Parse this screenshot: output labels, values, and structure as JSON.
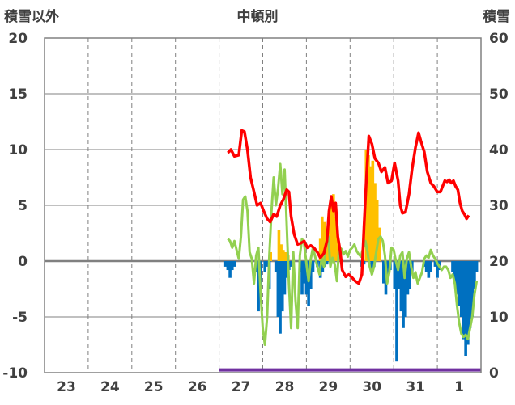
{
  "chart_data": {
    "type": "bar",
    "title": "中頓別",
    "left_axis_label": "積雪以外",
    "right_axis_label": "積雪",
    "x_tick_labels": [
      "23",
      "24",
      "25",
      "26",
      "27",
      "28",
      "29",
      "30",
      "31",
      "1"
    ],
    "y_left": {
      "min": -10,
      "max": 20,
      "ticks": [
        "20",
        "15",
        "10",
        "5",
        "0",
        "-5",
        "-10"
      ]
    },
    "y_right": {
      "min": 0,
      "max": 60,
      "ticks": [
        "60",
        "50",
        "40",
        "30",
        "20",
        "10",
        "0"
      ]
    },
    "x_range_days": [
      0,
      10
    ],
    "grid": "dashed vertical at each day, solid horizontal lines at tick values",
    "colors": {
      "temperature_line": "#ff0000",
      "green_line": "#92d050",
      "snowfall_bars": "#ffc000",
      "precip_bars": "#0070c0",
      "snow_depth_line": "#7030a0",
      "grid": "#808080",
      "text": "#404040"
    },
    "series_temperature": [
      [
        4.2,
        9.7
      ],
      [
        4.27,
        10.0
      ],
      [
        4.35,
        9.4
      ],
      [
        4.45,
        9.5
      ],
      [
        4.52,
        11.7
      ],
      [
        4.58,
        11.6
      ],
      [
        4.65,
        10.0
      ],
      [
        4.72,
        7.5
      ],
      [
        4.8,
        6.2
      ],
      [
        4.87,
        5.0
      ],
      [
        4.95,
        5.2
      ],
      [
        5.02,
        4.5
      ],
      [
        5.1,
        3.8
      ],
      [
        5.17,
        3.5
      ],
      [
        5.25,
        4.2
      ],
      [
        5.32,
        4.0
      ],
      [
        5.4,
        5.0
      ],
      [
        5.47,
        5.5
      ],
      [
        5.55,
        6.4
      ],
      [
        5.6,
        6.2
      ],
      [
        5.65,
        4.0
      ],
      [
        5.72,
        2.4
      ],
      [
        5.8,
        1.5
      ],
      [
        5.87,
        1.6
      ],
      [
        5.95,
        1.8
      ],
      [
        6.02,
        1.2
      ],
      [
        6.1,
        1.4
      ],
      [
        6.17,
        1.2
      ],
      [
        6.25,
        0.8
      ],
      [
        6.32,
        0.3
      ],
      [
        6.4,
        0.7
      ],
      [
        6.47,
        1.8
      ],
      [
        6.52,
        4.5
      ],
      [
        6.57,
        5.8
      ],
      [
        6.62,
        4.5
      ],
      [
        6.67,
        5.2
      ],
      [
        6.72,
        2.2
      ],
      [
        6.77,
        1.0
      ],
      [
        6.82,
        -0.8
      ],
      [
        6.9,
        -1.4
      ],
      [
        6.97,
        -1.2
      ],
      [
        7.05,
        -1.5
      ],
      [
        7.12,
        -1.8
      ],
      [
        7.2,
        -2.0
      ],
      [
        7.27,
        -1.2
      ],
      [
        7.32,
        3.0
      ],
      [
        7.37,
        7.0
      ],
      [
        7.43,
        11.2
      ],
      [
        7.5,
        10.5
      ],
      [
        7.57,
        9.2
      ],
      [
        7.65,
        8.8
      ],
      [
        7.72,
        8.0
      ],
      [
        7.8,
        8.4
      ],
      [
        7.87,
        7.0
      ],
      [
        7.95,
        7.2
      ],
      [
        8.02,
        8.8
      ],
      [
        8.1,
        7.2
      ],
      [
        8.15,
        5.0
      ],
      [
        8.2,
        4.3
      ],
      [
        8.27,
        4.4
      ],
      [
        8.35,
        6.0
      ],
      [
        8.42,
        8.2
      ],
      [
        8.5,
        10.2
      ],
      [
        8.57,
        11.5
      ],
      [
        8.62,
        10.8
      ],
      [
        8.7,
        9.8
      ],
      [
        8.77,
        8.0
      ],
      [
        8.85,
        7.0
      ],
      [
        8.92,
        6.7
      ],
      [
        9.0,
        6.2
      ],
      [
        9.07,
        6.2
      ],
      [
        9.12,
        6.7
      ],
      [
        9.17,
        7.2
      ],
      [
        9.22,
        7.1
      ],
      [
        9.27,
        7.3
      ],
      [
        9.32,
        7.0
      ],
      [
        9.37,
        7.2
      ],
      [
        9.42,
        6.7
      ],
      [
        9.47,
        6.4
      ],
      [
        9.52,
        5.2
      ],
      [
        9.57,
        4.5
      ],
      [
        9.62,
        4.2
      ],
      [
        9.67,
        3.8
      ],
      [
        9.72,
        4.1
      ]
    ],
    "series_green": [
      [
        4.2,
        2.0
      ],
      [
        4.25,
        1.8
      ],
      [
        4.3,
        1.2
      ],
      [
        4.35,
        1.8
      ],
      [
        4.4,
        1.0
      ],
      [
        4.45,
        0.2
      ],
      [
        4.5,
        2.2
      ],
      [
        4.55,
        5.5
      ],
      [
        4.6,
        5.8
      ],
      [
        4.65,
        4.5
      ],
      [
        4.7,
        0.8
      ],
      [
        4.75,
        0.2
      ],
      [
        4.8,
        -2.0
      ],
      [
        4.85,
        0.5
      ],
      [
        4.9,
        1.2
      ],
      [
        4.95,
        -2.8
      ],
      [
        5.0,
        -6.0
      ],
      [
        5.05,
        -7.5
      ],
      [
        5.1,
        -5.0
      ],
      [
        5.15,
        0.5
      ],
      [
        5.2,
        4.5
      ],
      [
        5.25,
        7.5
      ],
      [
        5.3,
        5.0
      ],
      [
        5.35,
        6.5
      ],
      [
        5.4,
        8.7
      ],
      [
        5.45,
        6.0
      ],
      [
        5.5,
        8.2
      ],
      [
        5.55,
        3.2
      ],
      [
        5.6,
        -2.0
      ],
      [
        5.65,
        -6.0
      ],
      [
        5.7,
        0.8
      ],
      [
        5.75,
        -3.5
      ],
      [
        5.8,
        -6.0
      ],
      [
        5.85,
        0.5
      ],
      [
        5.9,
        2.0
      ],
      [
        5.95,
        1.5
      ],
      [
        6.0,
        -0.2
      ],
      [
        6.05,
        -1.8
      ],
      [
        6.1,
        0.2
      ],
      [
        6.15,
        1.2
      ],
      [
        6.2,
        0.4
      ],
      [
        6.25,
        -0.5
      ],
      [
        6.3,
        -1.2
      ],
      [
        6.35,
        0.3
      ],
      [
        6.4,
        -0.5
      ],
      [
        6.45,
        1.6
      ],
      [
        6.5,
        2.2
      ],
      [
        6.55,
        -0.5
      ],
      [
        6.6,
        0.3
      ],
      [
        6.65,
        -0.3
      ],
      [
        6.7,
        -1.8
      ],
      [
        6.75,
        1.2
      ],
      [
        6.8,
        1.1
      ],
      [
        6.85,
        0.6
      ],
      [
        6.9,
        0.9
      ],
      [
        6.95,
        0.4
      ],
      [
        7.0,
        1.0
      ],
      [
        7.05,
        1.2
      ],
      [
        7.1,
        1.5
      ],
      [
        7.15,
        0.9
      ],
      [
        7.2,
        0.6
      ],
      [
        7.25,
        0.4
      ],
      [
        7.3,
        1.2
      ],
      [
        7.35,
        1.8
      ],
      [
        7.4,
        0.8
      ],
      [
        7.45,
        -0.5
      ],
      [
        7.5,
        -1.2
      ],
      [
        7.55,
        -0.5
      ],
      [
        7.6,
        0.8
      ],
      [
        7.65,
        2.0
      ],
      [
        7.7,
        2.2
      ],
      [
        7.75,
        1.8
      ],
      [
        7.8,
        0.5
      ],
      [
        7.85,
        -2.0
      ],
      [
        7.9,
        -1.0
      ],
      [
        7.95,
        1.2
      ],
      [
        8.0,
        1.0
      ],
      [
        8.05,
        0.0
      ],
      [
        8.1,
        -0.8
      ],
      [
        8.15,
        0.5
      ],
      [
        8.2,
        0.8
      ],
      [
        8.25,
        -1.5
      ],
      [
        8.3,
        0.2
      ],
      [
        8.35,
        0.8
      ],
      [
        8.4,
        -0.5
      ],
      [
        8.45,
        -1.5
      ],
      [
        8.5,
        -1.0
      ],
      [
        8.55,
        -2.0
      ],
      [
        8.6,
        -1.5
      ],
      [
        8.65,
        -1.0
      ],
      [
        8.7,
        0.2
      ],
      [
        8.75,
        0.5
      ],
      [
        8.8,
        0.3
      ],
      [
        8.85,
        1.0
      ],
      [
        8.9,
        0.5
      ],
      [
        8.95,
        0.2
      ],
      [
        9.0,
        -0.2
      ],
      [
        9.05,
        -0.5
      ],
      [
        9.1,
        -0.8
      ],
      [
        9.15,
        -0.5
      ],
      [
        9.2,
        -0.5
      ],
      [
        9.25,
        -0.8
      ],
      [
        9.3,
        -1.5
      ],
      [
        9.35,
        -1.2
      ],
      [
        9.4,
        -2.0
      ],
      [
        9.45,
        -4.0
      ],
      [
        9.5,
        -5.5
      ],
      [
        9.55,
        -6.5
      ],
      [
        9.6,
        -6.8
      ],
      [
        9.65,
        -6.6
      ],
      [
        9.7,
        -7.0
      ],
      [
        9.75,
        -6.0
      ],
      [
        9.8,
        -5.0
      ],
      [
        9.85,
        -3.0
      ],
      [
        9.9,
        -1.8
      ]
    ],
    "bars_snowfall": [
      [
        5.18,
        0.8
      ],
      [
        5.37,
        2.8
      ],
      [
        5.42,
        1.5
      ],
      [
        5.47,
        1.0
      ],
      [
        5.52,
        0.8
      ],
      [
        5.58,
        0.5
      ],
      [
        6.32,
        2.0
      ],
      [
        6.36,
        4.0
      ],
      [
        6.42,
        3.5
      ],
      [
        6.47,
        2.5
      ],
      [
        6.52,
        4.5
      ],
      [
        6.57,
        5.8
      ],
      [
        6.62,
        6.0
      ],
      [
        6.67,
        4.0
      ],
      [
        6.72,
        2.0
      ],
      [
        6.77,
        1.0
      ],
      [
        7.37,
        10.0
      ],
      [
        7.42,
        9.5
      ],
      [
        7.47,
        8.5
      ],
      [
        7.52,
        9.0
      ],
      [
        7.57,
        7.0
      ],
      [
        7.62,
        5.5
      ],
      [
        7.67,
        3.0
      ]
    ],
    "bars_precip": [
      [
        4.15,
        -0.5
      ],
      [
        4.2,
        -0.8
      ],
      [
        4.25,
        -1.5
      ],
      [
        4.3,
        -0.8
      ],
      [
        4.35,
        -0.5
      ],
      [
        4.85,
        -1.0
      ],
      [
        4.9,
        -4.5
      ],
      [
        4.95,
        -2.5
      ],
      [
        5.05,
        -1.0
      ],
      [
        5.1,
        -0.5
      ],
      [
        5.15,
        -2.5
      ],
      [
        5.3,
        -1.0
      ],
      [
        5.35,
        -5.0
      ],
      [
        5.4,
        -6.5
      ],
      [
        5.45,
        -4.5
      ],
      [
        5.5,
        -3.0
      ],
      [
        5.55,
        -1.5
      ],
      [
        5.6,
        -0.8
      ],
      [
        5.65,
        -0.5
      ],
      [
        5.85,
        -1.0
      ],
      [
        5.9,
        -3.0
      ],
      [
        5.95,
        -2.0
      ],
      [
        6.0,
        -3.0
      ],
      [
        6.05,
        -4.0
      ],
      [
        6.1,
        -2.5
      ],
      [
        6.15,
        -1.0
      ],
      [
        6.25,
        -0.5
      ],
      [
        6.32,
        -1.5
      ],
      [
        6.37,
        -1.0
      ],
      [
        6.42,
        -0.5
      ],
      [
        6.47,
        -0.3
      ],
      [
        7.27,
        -0.5
      ],
      [
        7.32,
        -0.3
      ],
      [
        7.5,
        -1.0
      ],
      [
        7.55,
        -0.5
      ],
      [
        7.77,
        -2.0
      ],
      [
        7.82,
        -3.0
      ],
      [
        7.87,
        -1.5
      ],
      [
        7.92,
        -0.8
      ],
      [
        8.02,
        -2.5
      ],
      [
        8.07,
        -9.0
      ],
      [
        8.12,
        -2.5
      ],
      [
        8.17,
        -4.5
      ],
      [
        8.22,
        -6.0
      ],
      [
        8.27,
        -5.0
      ],
      [
        8.32,
        -3.0
      ],
      [
        8.37,
        -2.5
      ],
      [
        8.42,
        -1.0
      ],
      [
        8.7,
        -0.5
      ],
      [
        8.75,
        -1.0
      ],
      [
        8.8,
        -1.5
      ],
      [
        8.85,
        -1.0
      ],
      [
        8.95,
        -0.5
      ],
      [
        9.0,
        -1.5
      ],
      [
        9.05,
        -0.8
      ],
      [
        9.35,
        -1.0
      ],
      [
        9.4,
        -2.0
      ],
      [
        9.45,
        -3.0
      ],
      [
        9.5,
        -4.0
      ],
      [
        9.55,
        -5.0
      ],
      [
        9.6,
        -7.0
      ],
      [
        9.65,
        -8.5
      ],
      [
        9.7,
        -7.5
      ],
      [
        9.75,
        -6.0
      ],
      [
        9.8,
        -5.0
      ],
      [
        9.85,
        -2.5
      ],
      [
        9.9,
        -1.0
      ]
    ],
    "series_snow_depth": [
      [
        4.0,
        0.5
      ],
      [
        10.0,
        0.5
      ]
    ]
  }
}
